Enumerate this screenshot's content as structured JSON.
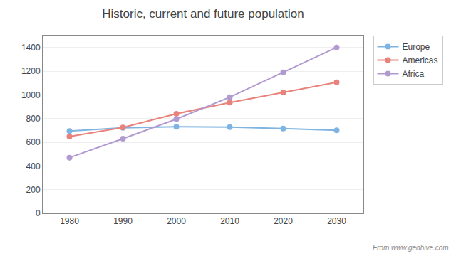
{
  "chart_data": {
    "type": "line",
    "title": "Historic, current and future population",
    "x": [
      1980,
      1990,
      2000,
      2010,
      2020,
      2030
    ],
    "series": [
      {
        "name": "Europe",
        "values": [
          695,
          721,
          730,
          728,
          715,
          700
        ],
        "color": "#7eb4e2",
        "marker": "circle"
      },
      {
        "name": "Americas",
        "values": [
          648,
          724,
          840,
          935,
          1020,
          1105
        ],
        "color": "#e8827a",
        "marker": "circle"
      },
      {
        "name": "Africa",
        "values": [
          470,
          630,
          795,
          980,
          1190,
          1400
        ],
        "color": "#b09ad0",
        "marker": "circle"
      }
    ],
    "xlim": [
      1975,
      2035
    ],
    "xticks": [
      1980,
      1990,
      2000,
      2010,
      2020,
      2030
    ],
    "ylim": [
      0,
      1500
    ],
    "yticks": [
      0,
      200,
      400,
      600,
      800,
      1000,
      1200,
      1400
    ],
    "grid": true,
    "legend": "right",
    "annotations": [
      "From www.geohive.com"
    ]
  }
}
